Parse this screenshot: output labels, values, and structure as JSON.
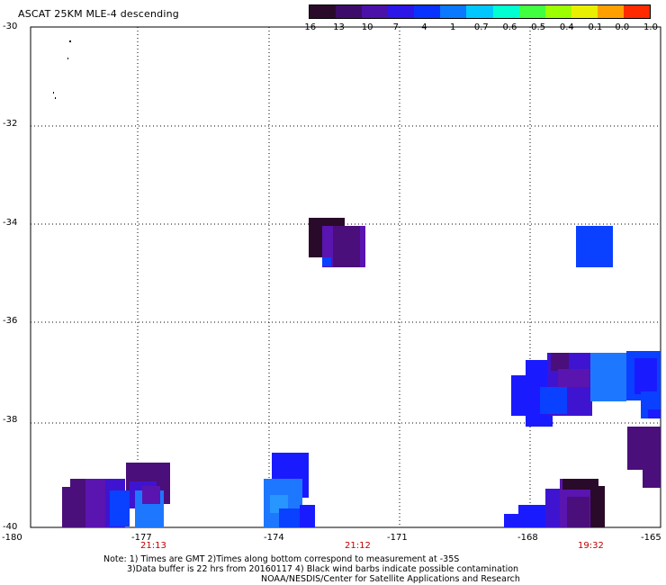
{
  "title": "ASCAT 25KM MLE-4 descending",
  "colorbar": {
    "labels": [
      "-16",
      "-13",
      "-10",
      "-7",
      "-4",
      "-1",
      "-0.7",
      "-0.6",
      "-0.5",
      "-0.4",
      "-0.1",
      "0.0",
      "1.0"
    ],
    "colors": [
      "#2a0a2a",
      "#3d0c6b",
      "#4a12a8",
      "#2d16e8",
      "#0a32ff",
      "#0a78ff",
      "#00c8ff",
      "#00ffd0",
      "#40ff40",
      "#9cff00",
      "#e8f000",
      "#ffa000",
      "#ff2a00"
    ]
  },
  "map": {
    "lat_labels": [
      "-30",
      "-32",
      "-34",
      "-36",
      "-38",
      "-40"
    ],
    "lon_labels": [
      "-180",
      "-177",
      "-174",
      "-171",
      "-168",
      "-165"
    ],
    "time_labels": [
      "21:13",
      "21:12",
      "19:32"
    ],
    "colors": {
      "dark": "#2a0a2a",
      "purple": "#4a0f7a",
      "violet": "#5a14b0",
      "indigo": "#3f14d0",
      "blue": "#1a1aff",
      "midblue": "#0a40ff",
      "lightblue": "#1e78ff",
      "sky": "#2896ff"
    }
  },
  "note": {
    "line1": "Note: 1) Times are GMT 2)Times along bottom correspond to measurement at -35S",
    "line2": "3)Data buffer is 22 hrs from 20160117 4) Black wind barbs indicate possible contamination",
    "credit": "NOAA/NESDIS/Center for Satellite Applications and Research"
  }
}
